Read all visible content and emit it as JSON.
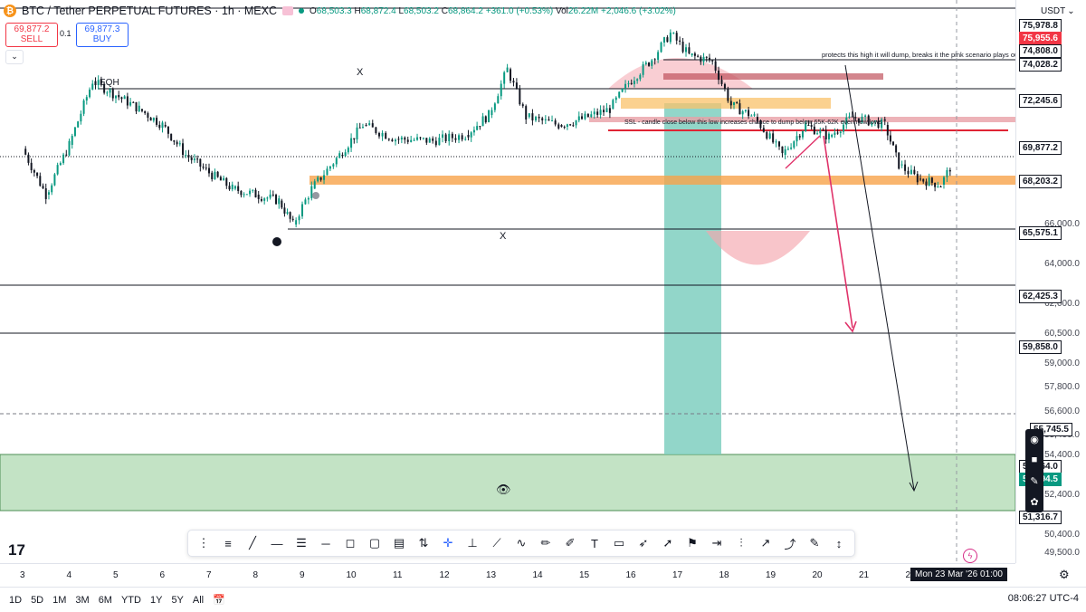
{
  "header": {
    "symbol_title": "BTC / Tether PERPETUAL FUTURES · 1h · MEXC",
    "ohlc_O": "O",
    "ohlc_O_val": "68,503.3",
    "ohlc_H": "H",
    "ohlc_H_val": "68,872.4",
    "ohlc_L": "L",
    "ohlc_L_val": "68,503.2",
    "ohlc_C": "C",
    "ohlc_C_val": "68,864.2",
    "change": "+361.0 (+0.53%)",
    "vol_label": "Vol",
    "vol": "26.22M",
    "vol_change": "+2,046.6 (+3.02%)",
    "currency": "USDT"
  },
  "trade": {
    "sell_price": "69,877.2",
    "sell_label": "SELL",
    "spread": "0.1",
    "buy_price": "69,877.3",
    "buy_label": "BUY"
  },
  "annotations": {
    "eqh": "EQH",
    "x_top": "X",
    "x_bottom": "X",
    "protects_note": "protects this high it will dump, breaks it the pink scenario plays out",
    "ssl_note": "SSL - candle close below this low increases chance to dump below 65K-62K even new lows"
  },
  "price_axis": {
    "ticks": [
      "66,000.0",
      "64,000.0",
      "62,000.0",
      "60,500.0",
      "59,000.0",
      "57,800.0",
      "56,600.0",
      "55,400.0",
      "54,400.0",
      "52,400.0",
      "50,400.0",
      "49,500.0"
    ],
    "tags": [
      {
        "label": "75,978.8",
        "style": "white"
      },
      {
        "label": "75,955.6",
        "style": "red"
      },
      {
        "label": "74,808.0",
        "style": "white"
      },
      {
        "label": "74,028.2",
        "style": "white"
      },
      {
        "label": "72,245.6",
        "style": "white"
      },
      {
        "label": "69,877.2",
        "style": "white"
      },
      {
        "label": "68,203.2",
        "style": "white"
      },
      {
        "label": "65,575.1",
        "style": "white"
      },
      {
        "label": "62,425.3",
        "style": "white"
      },
      {
        "label": "59,858.0",
        "style": "white"
      },
      {
        "label": "55,745.5",
        "style": "white"
      },
      {
        "label": "53,864.0",
        "style": "white"
      },
      {
        "label": "53,794.5",
        "style": "green"
      },
      {
        "label": "51,316.7",
        "style": "white"
      }
    ]
  },
  "time_axis": {
    "ticks": [
      "3",
      "4",
      "5",
      "6",
      "7",
      "8",
      "9",
      "10",
      "11",
      "12",
      "13",
      "14",
      "15",
      "16",
      "17",
      "18",
      "19",
      "20",
      "21",
      "22"
    ],
    "crosshair_time": "Mon 23 Mar '26   01:00"
  },
  "bottom_bar": {
    "ranges": [
      "1D",
      "5D",
      "1M",
      "3M",
      "6M",
      "YTD",
      "1Y",
      "5Y",
      "All"
    ],
    "clock": "08:06:27 UTC-4"
  },
  "toolbar": {
    "tools": [
      "drag-handle-icon",
      "parallel-channel-icon",
      "trend-line-icon",
      "horizontal-ray-icon",
      "horizontal-lines-icon",
      "horizontal-line-icon",
      "rectangle-callout-icon",
      "rectangle-icon",
      "date-range-icon",
      "long-position-icon",
      "crosshair-icon",
      "vertical-line-icon",
      "path-icon",
      "curve-icon",
      "brush-icon",
      "highlighter-icon",
      "text-icon",
      "callout-icon",
      "arrow-marker-icon",
      "arrow-icon",
      "flag-icon",
      "price-range-icon",
      "bars-pattern-icon",
      "measure-icon",
      "forecast-icon",
      "pen-icon",
      "vertical-range-icon"
    ]
  },
  "colors": {
    "bull": "#089981",
    "bear": "#131722",
    "orange_zone": "#f7a24a",
    "pink_zone": "#f4a6ae",
    "green_zone": "#c3e3c5",
    "teal_band": "#7fcfbf",
    "red_line": "#e02434",
    "pink_arrow": "#e0336a"
  },
  "chart_data": {
    "type": "candlestick",
    "x_range": [
      "3",
      "23"
    ],
    "ylim": [
      49000,
      77000
    ],
    "close_path": [
      {
        "x": 3,
        "y": 69800
      },
      {
        "x": 3.5,
        "y": 67500
      },
      {
        "x": 4,
        "y": 70000
      },
      {
        "x": 4.5,
        "y": 73200
      },
      {
        "x": 5,
        "y": 72500
      },
      {
        "x": 5.5,
        "y": 71800
      },
      {
        "x": 6,
        "y": 71000
      },
      {
        "x": 6.5,
        "y": 69500
      },
      {
        "x": 7,
        "y": 68600
      },
      {
        "x": 7.5,
        "y": 67800
      },
      {
        "x": 8,
        "y": 67500
      },
      {
        "x": 8.5,
        "y": 67200
      },
      {
        "x": 8.8,
        "y": 66000
      },
      {
        "x": 9.2,
        "y": 67800
      },
      {
        "x": 9.8,
        "y": 69500
      },
      {
        "x": 10.3,
        "y": 71000
      },
      {
        "x": 11,
        "y": 70300
      },
      {
        "x": 11.8,
        "y": 70200
      },
      {
        "x": 12.5,
        "y": 70500
      },
      {
        "x": 13,
        "y": 71500
      },
      {
        "x": 13.4,
        "y": 73800
      },
      {
        "x": 13.8,
        "y": 71400
      },
      {
        "x": 14.5,
        "y": 71000
      },
      {
        "x": 15,
        "y": 71300
      },
      {
        "x": 15.6,
        "y": 71800
      },
      {
        "x": 16,
        "y": 73100
      },
      {
        "x": 16.5,
        "y": 74300
      },
      {
        "x": 16.9,
        "y": 75600
      },
      {
        "x": 17.3,
        "y": 74500
      },
      {
        "x": 17.8,
        "y": 74200
      },
      {
        "x": 18.2,
        "y": 72000
      },
      {
        "x": 18.7,
        "y": 71400
      },
      {
        "x": 19.3,
        "y": 69500
      },
      {
        "x": 19.8,
        "y": 71000
      },
      {
        "x": 20.3,
        "y": 70400
      },
      {
        "x": 20.8,
        "y": 71400
      },
      {
        "x": 21.5,
        "y": 71000
      },
      {
        "x": 21.8,
        "y": 69000
      },
      {
        "x": 22.2,
        "y": 68300
      },
      {
        "x": 22.7,
        "y": 68000
      },
      {
        "x": 22.9,
        "y": 68864
      }
    ],
    "levels": [
      74028.2,
      72245.6,
      68203.2,
      65575.1,
      62425.3,
      59858.0,
      55745.5,
      53864.0,
      51316.7
    ]
  }
}
